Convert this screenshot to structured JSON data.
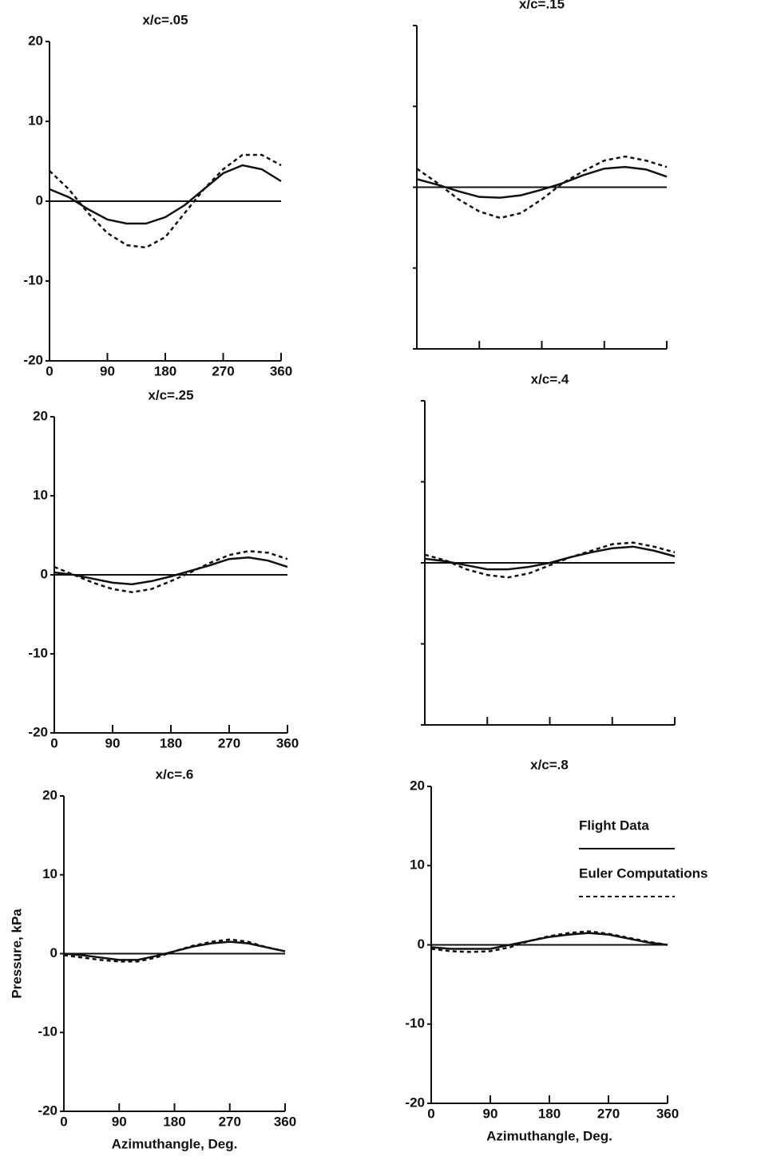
{
  "chart_data": [
    {
      "type": "line",
      "title": "x/c=.05",
      "x": [
        0,
        30,
        60,
        90,
        120,
        150,
        180,
        210,
        240,
        270,
        300,
        330,
        360
      ],
      "series": [
        {
          "name": "Flight Data",
          "color": "#111",
          "style": "solid",
          "values": [
            1.5,
            0.5,
            -1,
            -2.3,
            -2.8,
            -2.8,
            -2,
            -0.5,
            1.5,
            3.5,
            4.5,
            4,
            2.5
          ]
        },
        {
          "name": "Euler Computations",
          "color": "#111",
          "style": "dashed",
          "values": [
            3.8,
            1.5,
            -1.5,
            -4,
            -5.5,
            -5.8,
            -4.5,
            -1.5,
            1.5,
            4,
            5.8,
            5.8,
            4.5
          ]
        }
      ],
      "xlim": [
        0,
        360
      ],
      "ylim": [
        -20,
        20
      ],
      "xticks": [
        0,
        90,
        180,
        270,
        360
      ],
      "yticks": [
        -20,
        -10,
        0,
        10,
        20
      ],
      "tick_labels": true
    },
    {
      "type": "line",
      "title": "x/c=.15",
      "x": [
        0,
        30,
        60,
        90,
        120,
        150,
        180,
        210,
        240,
        270,
        300,
        330,
        360
      ],
      "series": [
        {
          "name": "Flight Data",
          "color": "#111",
          "style": "solid",
          "values": [
            1,
            0.3,
            -0.5,
            -1.2,
            -1.3,
            -1,
            -0.3,
            0.5,
            1.5,
            2.3,
            2.5,
            2.2,
            1.3
          ]
        },
        {
          "name": "Euler Computations",
          "color": "#111",
          "style": "dashed",
          "values": [
            2.3,
            0.5,
            -1.5,
            -3,
            -3.8,
            -3.2,
            -1.5,
            0.5,
            2,
            3.3,
            3.8,
            3.3,
            2.5
          ]
        }
      ],
      "xlim": [
        0,
        360
      ],
      "ylim": [
        -20,
        20
      ],
      "xticks": [
        0,
        90,
        180,
        270,
        360
      ],
      "yticks": [
        -20,
        -10,
        0,
        10,
        20
      ],
      "tick_labels": false
    },
    {
      "type": "line",
      "title": "x/c=.25",
      "x": [
        0,
        30,
        60,
        90,
        120,
        150,
        180,
        210,
        240,
        270,
        300,
        330,
        360
      ],
      "series": [
        {
          "name": "Flight Data",
          "color": "#111",
          "style": "solid",
          "values": [
            0.3,
            0,
            -0.5,
            -1,
            -1.2,
            -0.8,
            -0.2,
            0.5,
            1.2,
            2,
            2.2,
            1.8,
            1
          ]
        },
        {
          "name": "Euler Computations",
          "color": "#111",
          "style": "dashed",
          "values": [
            1,
            0,
            -1,
            -1.8,
            -2.2,
            -1.8,
            -0.8,
            0.3,
            1.5,
            2.5,
            3,
            2.8,
            2
          ]
        }
      ],
      "xlim": [
        0,
        360
      ],
      "ylim": [
        -20,
        20
      ],
      "xticks": [
        0,
        90,
        180,
        270,
        360
      ],
      "yticks": [
        -20,
        -10,
        0,
        10,
        20
      ],
      "tick_labels": true
    },
    {
      "type": "line",
      "title": "x/c=.4",
      "x": [
        0,
        30,
        60,
        90,
        120,
        150,
        180,
        210,
        240,
        270,
        300,
        330,
        360
      ],
      "series": [
        {
          "name": "Flight Data",
          "color": "#111",
          "style": "solid",
          "values": [
            0.5,
            0.2,
            -0.3,
            -0.8,
            -0.8,
            -0.5,
            0,
            0.7,
            1.3,
            1.8,
            2,
            1.5,
            0.8
          ]
        },
        {
          "name": "Euler Computations",
          "color": "#111",
          "style": "dashed",
          "values": [
            1,
            0.3,
            -0.8,
            -1.5,
            -1.8,
            -1.3,
            -0.3,
            0.7,
            1.5,
            2.3,
            2.5,
            2,
            1.3
          ]
        }
      ],
      "xlim": [
        0,
        360
      ],
      "ylim": [
        -20,
        20
      ],
      "xticks": [
        0,
        90,
        180,
        270,
        360
      ],
      "yticks": [
        -20,
        -10,
        0,
        10,
        20
      ],
      "tick_labels": false
    },
    {
      "type": "line",
      "title": "x/c=.6",
      "x": [
        0,
        30,
        60,
        90,
        120,
        150,
        180,
        210,
        240,
        270,
        300,
        330,
        360
      ],
      "xlabel": "Azimuthangle, Deg.",
      "ylabel": "Pressure, kPa",
      "series": [
        {
          "name": "Flight Data",
          "color": "#111",
          "style": "solid",
          "values": [
            0,
            -0.2,
            -0.5,
            -0.8,
            -0.8,
            -0.3,
            0.3,
            0.9,
            1.3,
            1.5,
            1.3,
            0.8,
            0.3
          ]
        },
        {
          "name": "Euler Computations",
          "color": "#111",
          "style": "dashed",
          "values": [
            -0.2,
            -0.5,
            -0.8,
            -1,
            -1,
            -0.5,
            0.3,
            1,
            1.5,
            1.8,
            1.5,
            0.8,
            0.3
          ]
        }
      ],
      "xlim": [
        0,
        360
      ],
      "ylim": [
        -20,
        20
      ],
      "xticks": [
        0,
        90,
        180,
        270,
        360
      ],
      "yticks": [
        -20,
        -10,
        0,
        10,
        20
      ],
      "tick_labels": true
    },
    {
      "type": "line",
      "title": "x/c=.8",
      "x": [
        0,
        30,
        60,
        90,
        120,
        150,
        180,
        210,
        240,
        270,
        300,
        330,
        360
      ],
      "xlabel": "Azimuthangle, Deg.",
      "series": [
        {
          "name": "Flight Data",
          "color": "#111",
          "style": "solid",
          "values": [
            -0.3,
            -0.5,
            -0.5,
            -0.5,
            0,
            0.5,
            1,
            1.3,
            1.5,
            1.3,
            0.8,
            0.3,
            0
          ]
        },
        {
          "name": "Euler Computations",
          "color": "#111",
          "style": "dashed",
          "values": [
            -0.5,
            -0.8,
            -0.9,
            -0.8,
            -0.3,
            0.5,
            1.1,
            1.5,
            1.7,
            1.4,
            0.9,
            0.4,
            0
          ]
        }
      ],
      "xlim": [
        0,
        360
      ],
      "ylim": [
        -20,
        20
      ],
      "xticks": [
        0,
        90,
        180,
        270,
        360
      ],
      "yticks": [
        -20,
        -10,
        0,
        10,
        20
      ],
      "tick_labels": true,
      "legend": true
    }
  ]
}
